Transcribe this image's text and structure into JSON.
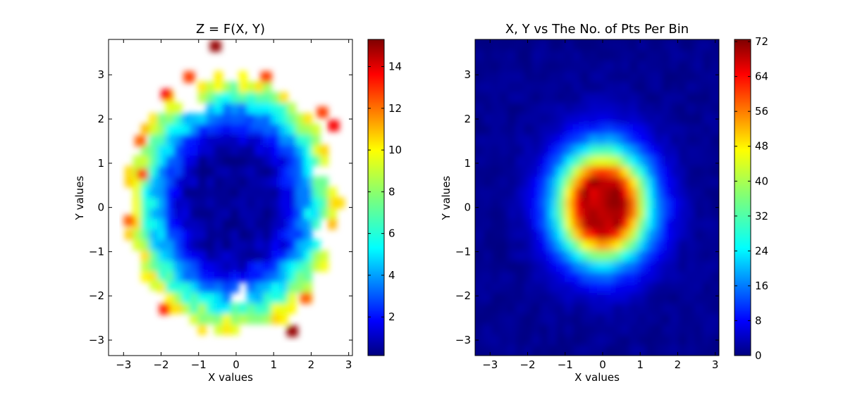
{
  "chart_data": [
    {
      "type": "heatmap",
      "title": "Z = F(X, Y)",
      "xlabel": "X values",
      "ylabel": "Y values",
      "xlim": [
        -3.4,
        3.1
      ],
      "ylim": [
        -3.35,
        3.8
      ],
      "xticks": [
        -3,
        -2,
        -1,
        0,
        1,
        2,
        3
      ],
      "xtick_labels": [
        "−3",
        "−2",
        "−1",
        "0",
        "1",
        "2",
        "3"
      ],
      "yticks": [
        -3,
        -2,
        -1,
        0,
        1,
        2,
        3
      ],
      "ytick_labels": [
        "−3",
        "−2",
        "−1",
        "0",
        "1",
        "2",
        "3"
      ],
      "colormap": "jet",
      "interpolation": "smooth",
      "missing_color": "#ffffff",
      "colorbar": {
        "vmin": 0.15,
        "vmax": 15.3,
        "ticks": [
          2,
          4,
          6,
          8,
          10,
          12,
          14
        ],
        "tick_labels": [
          "2",
          "4",
          "6",
          "8",
          "10",
          "12",
          "14"
        ]
      },
      "field": {
        "kind": "radial",
        "center": [
          -0.1,
          0.1
        ],
        "radius_x": 2.45,
        "radius_y": 2.6,
        "core_value": 0.4,
        "inner_radius": 0.45,
        "ring_values": [
          [
            0.0,
            0.4
          ],
          [
            0.45,
            0.6
          ],
          [
            0.6,
            1.6
          ],
          [
            0.75,
            3.2
          ],
          [
            0.88,
            5.5
          ],
          [
            1.0,
            7.5
          ],
          [
            1.12,
            10.5
          ]
        ],
        "noise": 0.9,
        "holes": [
          [
            -1.2,
            2.35,
            0.32
          ],
          [
            2.2,
            0.8,
            0.2
          ],
          [
            0.15,
            -2.0,
            0.22
          ],
          [
            2.3,
            -0.6,
            0.28
          ],
          [
            -0.6,
            3.3,
            0.28
          ]
        ]
      },
      "hot_spots": [
        {
          "x": -0.55,
          "y": 3.65,
          "value": 15.0
        },
        {
          "x": -1.25,
          "y": 2.95,
          "value": 12.5
        },
        {
          "x": 0.8,
          "y": 2.95,
          "value": 12.5
        },
        {
          "x": -1.85,
          "y": 2.55,
          "value": 13.5
        },
        {
          "x": 2.3,
          "y": 2.15,
          "value": 12.5
        },
        {
          "x": 2.6,
          "y": 1.85,
          "value": 13.5
        },
        {
          "x": -2.55,
          "y": 1.5,
          "value": 12.0
        },
        {
          "x": -2.5,
          "y": 0.75,
          "value": 12.5
        },
        {
          "x": -2.85,
          "y": -0.3,
          "value": 12.0
        },
        {
          "x": -1.9,
          "y": -2.3,
          "value": 13.0
        },
        {
          "x": -2.15,
          "y": -1.75,
          "value": 9.0
        },
        {
          "x": 1.5,
          "y": -2.8,
          "value": 15.0
        },
        {
          "x": 1.85,
          "y": -2.05,
          "value": 12.0
        },
        {
          "x": 0.55,
          "y": 1.9,
          "value": 3.5
        }
      ]
    },
    {
      "type": "heatmap",
      "title": "X, Y vs The No. of Pts Per Bin",
      "xlabel": "X values",
      "ylabel": "Y values",
      "xlim": [
        -3.4,
        3.1
      ],
      "ylim": [
        -3.35,
        3.8
      ],
      "xticks": [
        -3,
        -2,
        -1,
        0,
        1,
        2,
        3
      ],
      "xtick_labels": [
        "−3",
        "−2",
        "−1",
        "0",
        "1",
        "2",
        "3"
      ],
      "yticks": [
        -3,
        -2,
        -1,
        0,
        1,
        2,
        3
      ],
      "ytick_labels": [
        "−3",
        "−2",
        "−1",
        "0",
        "1",
        "2",
        "3"
      ],
      "colormap": "jet",
      "interpolation": "smooth",
      "colorbar": {
        "vmin": 0,
        "vmax": 72.5,
        "ticks": [
          0,
          8,
          16,
          24,
          32,
          40,
          48,
          56,
          64,
          72
        ],
        "tick_labels": [
          "0",
          "8",
          "16",
          "24",
          "32",
          "40",
          "48",
          "56",
          "64",
          "72"
        ]
      },
      "field": {
        "kind": "gaussian",
        "center": [
          0.0,
          0.05
        ],
        "peak": 72,
        "sigma_x": 0.82,
        "sigma_y": 0.85,
        "plateau": 0.45,
        "background": 1.2,
        "noise": 3.0
      }
    }
  ]
}
